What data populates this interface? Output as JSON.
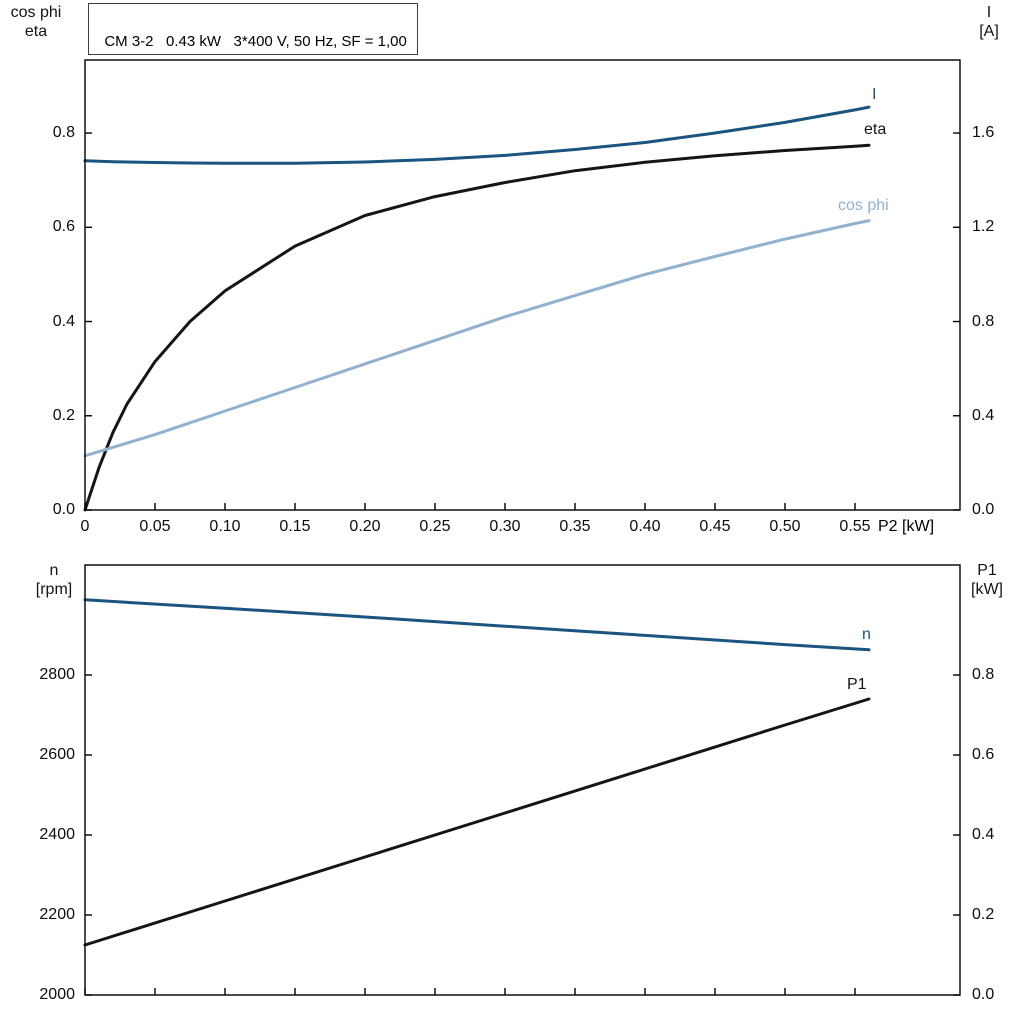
{
  "header": {
    "title_box": "CM 3-2   0.43 kW   3*400 V, 50 Hz, SF = 1,00"
  },
  "axis_corner_labels": {
    "top_left_line1": "cos phi",
    "top_left_line2": "eta",
    "top_right_line1": "I",
    "top_right_line2": "[A]",
    "bottom_left_line1": "n",
    "bottom_left_line2": "[rpm]",
    "bottom_right_line1": "P1",
    "bottom_right_line2": "[kW]"
  },
  "x_axis_label": "P2 [kW]",
  "colors": {
    "dark_blue": "#1a5480",
    "light_blue": "#92b1cf",
    "curve_black": "#151515"
  },
  "chart_data": [
    {
      "type": "line",
      "title": "CM 3-2 0.43 kW 3*400 V, 50 Hz, SF = 1,00",
      "xlabel": "P2 [kW]",
      "ylabel_left": "cos phi / eta",
      "ylabel_right": "I [A]",
      "xlim": [
        0,
        0.625
      ],
      "ylim_left": [
        0,
        0.955
      ],
      "ylim_right": [
        0,
        1.91
      ],
      "grid": false,
      "legend_position": "inline-labels",
      "xticks": [
        0,
        0.05,
        0.1,
        0.15,
        0.2,
        0.25,
        0.3,
        0.35,
        0.4,
        0.45,
        0.5,
        0.55
      ],
      "xtick_labels": [
        "0",
        "0.05",
        "0.10",
        "0.15",
        "0.20",
        "0.25",
        "0.30",
        "0.35",
        "0.40",
        "0.45",
        "0.50",
        "0.55"
      ],
      "yticks_left": [
        0,
        0.2,
        0.4,
        0.6,
        0.8
      ],
      "ytick_labels_left": [
        "0.0",
        "0.2",
        "0.4",
        "0.6",
        "0.8"
      ],
      "yticks_right": [
        0,
        0.4,
        0.8,
        1.2,
        1.6
      ],
      "ytick_labels_right": [
        "0.0",
        "0.4",
        "0.8",
        "1.2",
        "1.6"
      ],
      "x": [
        0,
        0.01,
        0.02,
        0.03,
        0.05,
        0.075,
        0.1,
        0.15,
        0.2,
        0.25,
        0.3,
        0.35,
        0.4,
        0.45,
        0.5,
        0.55,
        0.56
      ],
      "series": [
        {
          "name": "I",
          "axis": "right",
          "color": "#1a5480",
          "values": [
            1.482,
            1.48,
            1.478,
            1.477,
            1.475,
            1.473,
            1.472,
            1.472,
            1.477,
            1.488,
            1.505,
            1.53,
            1.56,
            1.6,
            1.645,
            1.698,
            1.71
          ]
        },
        {
          "name": "eta",
          "axis": "left",
          "color": "#151515",
          "values": [
            0,
            0.09,
            0.165,
            0.225,
            0.315,
            0.4,
            0.465,
            0.56,
            0.625,
            0.665,
            0.695,
            0.72,
            0.738,
            0.752,
            0.763,
            0.772,
            0.774
          ]
        },
        {
          "name": "cos phi",
          "axis": "left",
          "color": "#92b1cf",
          "values": [
            0.115,
            0.124,
            0.133,
            0.142,
            0.16,
            0.185,
            0.21,
            0.26,
            0.31,
            0.36,
            0.41,
            0.455,
            0.5,
            0.538,
            0.575,
            0.608,
            0.614
          ]
        }
      ]
    },
    {
      "type": "line",
      "title": "",
      "xlabel": "",
      "ylabel_left": "n [rpm]",
      "ylabel_right": "P1 [kW]",
      "xlim": [
        0,
        0.625
      ],
      "ylim_left": [
        2000,
        3075
      ],
      "ylim_right": [
        0,
        1.075
      ],
      "grid": false,
      "legend_position": "inline-labels",
      "xticks": [
        0,
        0.05,
        0.1,
        0.15,
        0.2,
        0.25,
        0.3,
        0.35,
        0.4,
        0.45,
        0.5,
        0.55
      ],
      "xtick_labels": [],
      "yticks_left": [
        2000,
        2200,
        2400,
        2600,
        2800
      ],
      "ytick_labels_left": [
        "2000",
        "2200",
        "2400",
        "2600",
        "2800"
      ],
      "yticks_right": [
        0,
        0.2,
        0.4,
        0.6,
        0.8
      ],
      "ytick_labels_right": [
        "0.0",
        "0.2",
        "0.4",
        "0.6",
        "0.8"
      ],
      "x": [
        0,
        0.1,
        0.2,
        0.3,
        0.4,
        0.5,
        0.56
      ],
      "series": [
        {
          "name": "n",
          "axis": "left",
          "color": "#1a5480",
          "values": [
            2988,
            2967,
            2945,
            2922,
            2899,
            2876,
            2863
          ]
        },
        {
          "name": "P1",
          "axis": "right",
          "color": "#151515",
          "values": [
            0.125,
            0.235,
            0.345,
            0.455,
            0.565,
            0.675,
            0.74
          ]
        }
      ]
    }
  ]
}
